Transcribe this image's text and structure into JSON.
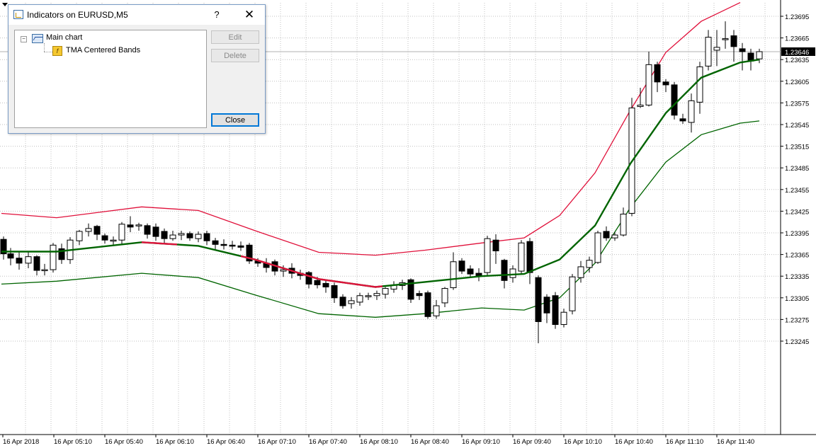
{
  "chart": {
    "symbol": "EURUSD",
    "timeframe": "M5",
    "current_price": "1.23646",
    "price_labels": [
      "1.23695",
      "1.23665",
      "1.23635",
      "1.23605",
      "1.23575",
      "1.23545",
      "1.23515",
      "1.23485",
      "1.23455",
      "1.23425",
      "1.23395",
      "1.23365",
      "1.23335",
      "1.23305",
      "1.23275",
      "1.23245"
    ],
    "time_labels": [
      "16 Apr 2018",
      "16 Apr 05:10",
      "16 Apr 05:40",
      "16 Apr 06:10",
      "16 Apr 06:40",
      "16 Apr 07:10",
      "16 Apr 07:40",
      "16 Apr 08:10",
      "16 Apr 08:40",
      "16 Apr 09:10",
      "16 Apr 09:40",
      "16 Apr 10:10",
      "16 Apr 10:40",
      "16 Apr 11:10",
      "16 Apr 11:40"
    ],
    "colors": {
      "upper_band": "#e0103a",
      "middle_up": "#006400",
      "middle_down": "#dc143c",
      "lower_band": "#006400",
      "candle_bull": "#ffffff",
      "candle_bear": "#000000",
      "grid": "#c0c0c0"
    },
    "bands": {
      "upper": [
        [
          2,
          1.23422
        ],
        [
          80,
          1.23416
        ],
        [
          200,
          1.23431
        ],
        [
          280,
          1.23426
        ],
        [
          360,
          1.23398
        ],
        [
          450,
          1.23368
        ],
        [
          530,
          1.23364
        ],
        [
          600,
          1.23371
        ],
        [
          680,
          1.23381
        ],
        [
          740,
          1.23388
        ],
        [
          790,
          1.23419
        ],
        [
          840,
          1.23478
        ],
        [
          890,
          1.23565
        ],
        [
          940,
          1.23645
        ],
        [
          990,
          1.23688
        ],
        [
          1045,
          1.23714
        ]
      ],
      "middle": [
        [
          2,
          1.23369
        ],
        [
          80,
          1.23369
        ],
        [
          200,
          1.23382
        ],
        [
          280,
          1.23377
        ],
        [
          360,
          1.23358
        ],
        [
          450,
          1.23331
        ],
        [
          530,
          1.2332
        ],
        [
          600,
          1.23327
        ],
        [
          680,
          1.23335
        ],
        [
          740,
          1.23338
        ],
        [
          790,
          1.23358
        ],
        [
          840,
          1.23405
        ],
        [
          890,
          1.23491
        ],
        [
          940,
          1.23561
        ],
        [
          990,
          1.2361
        ],
        [
          1045,
          1.23631
        ],
        [
          1072,
          1.23635
        ]
      ],
      "middle_down_range": [
        [
          200,
          250
        ],
        [
          340,
          540
        ]
      ],
      "lower": [
        [
          2,
          1.23324
        ],
        [
          80,
          1.23328
        ],
        [
          200,
          1.23339
        ],
        [
          280,
          1.23333
        ],
        [
          360,
          1.23309
        ],
        [
          450,
          1.23283
        ],
        [
          530,
          1.23278
        ],
        [
          600,
          1.23283
        ],
        [
          680,
          1.23291
        ],
        [
          740,
          1.23288
        ],
        [
          790,
          1.23305
        ],
        [
          840,
          1.23353
        ],
        [
          890,
          1.2343
        ],
        [
          940,
          1.23493
        ],
        [
          990,
          1.23531
        ],
        [
          1045,
          1.23547
        ],
        [
          1072,
          1.2355
        ]
      ]
    },
    "candles": [
      [
        5,
        1.23386,
        1.23366,
        1.2339,
        1.23358
      ],
      [
        15,
        1.23366,
        1.2336,
        1.23374,
        1.2335
      ],
      [
        27,
        1.2336,
        1.23353,
        1.2337,
        1.23344
      ],
      [
        40,
        1.23353,
        1.23362,
        1.2337,
        1.23346
      ],
      [
        52,
        1.23362,
        1.23343,
        1.23364,
        1.23336
      ],
      [
        63,
        1.23343,
        1.23344,
        1.23352,
        1.23336
      ],
      [
        75,
        1.23344,
        1.23378,
        1.23381,
        1.2334
      ],
      [
        87,
        1.23373,
        1.23358,
        1.2338,
        1.23352
      ],
      [
        99,
        1.23358,
        1.23385,
        1.23389,
        1.23352
      ],
      [
        112,
        1.23384,
        1.23397,
        1.23399,
        1.23378
      ],
      [
        125,
        1.23397,
        1.23401,
        1.23408,
        1.2339
      ],
      [
        137,
        1.23404,
        1.23393,
        1.23406,
        1.23385
      ],
      [
        148,
        1.23391,
        1.23385,
        1.23394,
        1.2338
      ],
      [
        160,
        1.23385,
        1.23385,
        1.2339,
        1.23378
      ],
      [
        172,
        1.23385,
        1.23407,
        1.2341,
        1.23378
      ],
      [
        184,
        1.23406,
        1.23403,
        1.23418,
        1.23396
      ],
      [
        196,
        1.23405,
        1.23406,
        1.23409,
        1.23398
      ],
      [
        208,
        1.23405,
        1.23393,
        1.23408,
        1.23387
      ],
      [
        220,
        1.23403,
        1.2339,
        1.23408,
        1.23384
      ],
      [
        232,
        1.23397,
        1.23387,
        1.23401,
        1.2338
      ],
      [
        244,
        1.23387,
        1.23392,
        1.23398,
        1.23384
      ],
      [
        256,
        1.23392,
        1.23394,
        1.23398,
        1.23385
      ],
      [
        268,
        1.23394,
        1.23388,
        1.23397,
        1.23384
      ],
      [
        280,
        1.23387,
        1.23393,
        1.23397,
        1.23382
      ],
      [
        292,
        1.23394,
        1.23384,
        1.23398,
        1.23378
      ],
      [
        304,
        1.23384,
        1.23379,
        1.23388,
        1.23372
      ],
      [
        316,
        1.23379,
        1.23378,
        1.23386,
        1.23372
      ],
      [
        328,
        1.23378,
        1.23377,
        1.23384,
        1.23372
      ],
      [
        340,
        1.23377,
        1.23375,
        1.23383,
        1.2337
      ],
      [
        352,
        1.23378,
        1.23356,
        1.23381,
        1.23352
      ],
      [
        364,
        1.23356,
        1.23353,
        1.2336,
        1.23348
      ],
      [
        376,
        1.23353,
        1.23347,
        1.2336,
        1.2334
      ],
      [
        388,
        1.23355,
        1.23342,
        1.23358,
        1.23336
      ],
      [
        400,
        1.23342,
        1.23344,
        1.2335,
        1.23334
      ],
      [
        412,
        1.23346,
        1.23339,
        1.23353,
        1.23332
      ],
      [
        424,
        1.23339,
        1.23336,
        1.23344,
        1.2333
      ],
      [
        436,
        1.2334,
        1.23324,
        1.23342,
        1.23318
      ],
      [
        448,
        1.23329,
        1.23323,
        1.23334,
        1.23318
      ],
      [
        460,
        1.23325,
        1.2332,
        1.2333,
        1.23312
      ],
      [
        472,
        1.23322,
        1.23305,
        1.23326,
        1.23298
      ],
      [
        484,
        1.23306,
        1.23294,
        1.2331,
        1.2329
      ],
      [
        496,
        1.23297,
        1.23301,
        1.23306,
        1.2329
      ],
      [
        508,
        1.23299,
        1.23308,
        1.23312,
        1.23294
      ],
      [
        520,
        1.23308,
        1.23308,
        1.23312,
        1.23302
      ],
      [
        532,
        1.23308,
        1.23311,
        1.23315,
        1.23302
      ],
      [
        544,
        1.2331,
        1.23318,
        1.2332,
        1.23304
      ],
      [
        556,
        1.23317,
        1.23323,
        1.23328,
        1.23312
      ],
      [
        568,
        1.23322,
        1.23326,
        1.2333,
        1.23316
      ],
      [
        580,
        1.2333,
        1.23303,
        1.23332,
        1.23298
      ],
      [
        592,
        1.23311,
        1.23308,
        1.23315,
        1.23302
      ],
      [
        604,
        1.23312,
        1.23279,
        1.23315,
        1.23276
      ],
      [
        616,
        1.2328,
        1.23294,
        1.23302,
        1.23276
      ],
      [
        628,
        1.23298,
        1.23318,
        1.2332,
        1.23292
      ],
      [
        640,
        1.23319,
        1.23355,
        1.23368,
        1.23316
      ],
      [
        652,
        1.23356,
        1.23342,
        1.2336,
        1.23338
      ],
      [
        664,
        1.23345,
        1.23338,
        1.2335,
        1.23334
      ],
      [
        676,
        1.23339,
        1.23335,
        1.23346,
        1.23328
      ],
      [
        688,
        1.2334,
        1.23387,
        1.23391,
        1.23336
      ],
      [
        700,
        1.23385,
        1.2337,
        1.23393,
        1.23352
      ],
      [
        712,
        1.23357,
        1.23329,
        1.23359,
        1.23318
      ],
      [
        724,
        1.23333,
        1.23345,
        1.2335,
        1.23326
      ],
      [
        736,
        1.23342,
        1.23381,
        1.23385,
        1.23338
      ],
      [
        748,
        1.23383,
        1.2334,
        1.23388,
        1.23324
      ],
      [
        760,
        1.23333,
        1.23272,
        1.23336,
        1.23242
      ],
      [
        772,
        1.23306,
        1.23284,
        1.2331,
        1.2327
      ],
      [
        784,
        1.23308,
        1.23268,
        1.23313,
        1.23262
      ],
      [
        796,
        1.23268,
        1.23285,
        1.2329,
        1.23264
      ],
      [
        808,
        1.23287,
        1.23334,
        1.23338,
        1.23282
      ],
      [
        820,
        1.23333,
        1.23348,
        1.23356,
        1.23326
      ],
      [
        832,
        1.23347,
        1.23357,
        1.23362,
        1.2334
      ],
      [
        844,
        1.23354,
        1.23395,
        1.23398,
        1.23352
      ],
      [
        856,
        1.23397,
        1.23388,
        1.23404,
        1.23384
      ],
      [
        868,
        1.23388,
        1.23392,
        1.23396,
        1.23384
      ],
      [
        880,
        1.23392,
        1.23421,
        1.2343,
        1.2339
      ],
      [
        892,
        1.23422,
        1.23568,
        1.23582,
        1.23418
      ],
      [
        904,
        1.2357,
        1.23572,
        1.23596,
        1.23568
      ],
      [
        916,
        1.23572,
        1.23628,
        1.23646,
        1.2357
      ],
      [
        928,
        1.23628,
        1.23604,
        1.23632,
        1.2359
      ],
      [
        940,
        1.23604,
        1.236,
        1.23608,
        1.2359
      ],
      [
        952,
        1.236,
        1.23558,
        1.23604,
        1.23552
      ],
      [
        964,
        1.23553,
        1.2355,
        1.2356,
        1.23546
      ],
      [
        976,
        1.23548,
        1.23578,
        1.23588,
        1.23534
      ],
      [
        988,
        1.23576,
        1.23625,
        1.23632,
        1.2356
      ],
      [
        1000,
        1.23626,
        1.23666,
        1.23676,
        1.2362
      ],
      [
        1012,
        1.23648,
        1.23652,
        1.23676,
        1.23626
      ],
      [
        1024,
        1.23664,
        1.23664,
        1.23688,
        1.2365
      ],
      [
        1036,
        1.23668,
        1.23653,
        1.23676,
        1.23632
      ],
      [
        1048,
        1.2365,
        1.23646,
        1.23658,
        1.2362
      ],
      [
        1060,
        1.23644,
        1.23633,
        1.2365,
        1.2362
      ],
      [
        1072,
        1.23636,
        1.23646,
        1.2365,
        1.2363
      ]
    ]
  },
  "dialog": {
    "title": "Indicators on EURUSD,M5",
    "help_label": "?",
    "close_x_label": "✕",
    "tree": {
      "root": "Main chart",
      "child": "TMA Centered Bands"
    },
    "buttons": {
      "edit": "Edit",
      "delete": "Delete",
      "close": "Close"
    }
  }
}
